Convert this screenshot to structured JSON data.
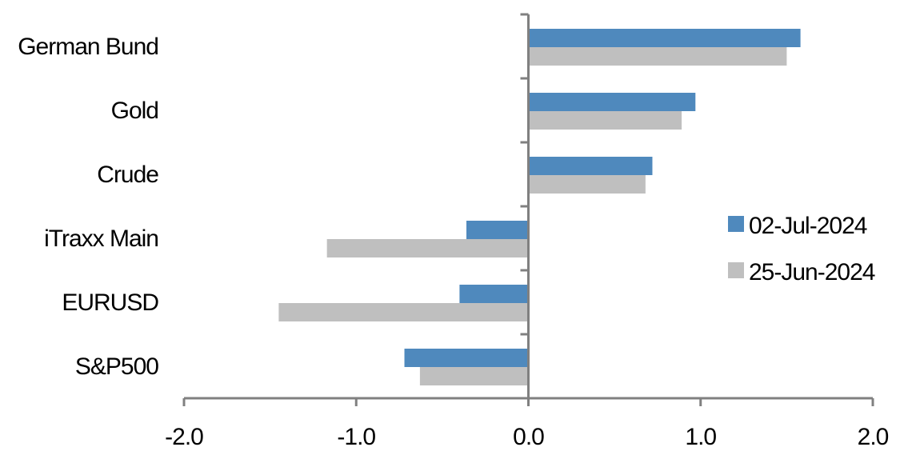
{
  "chart_data": {
    "type": "bar",
    "orientation": "horizontal",
    "categories": [
      "German Bund",
      "Gold",
      "Crude",
      "iTraxx Main",
      "EURUSD",
      "S&P500"
    ],
    "series": [
      {
        "name": "02-Jul-2024",
        "color": "#4F89BD",
        "values": [
          1.58,
          0.97,
          0.72,
          -0.36,
          -0.4,
          -0.72
        ]
      },
      {
        "name": "25-Jun-2024",
        "color": "#BFBFBF",
        "values": [
          1.5,
          0.89,
          0.68,
          -1.17,
          -1.45,
          -0.63
        ]
      }
    ],
    "xlim": [
      -2.0,
      2.0
    ],
    "xticks": [
      "-2.0",
      "-1.0",
      "0.0",
      "1.0",
      "2.0"
    ],
    "xtick_values": [
      -2,
      -1,
      0,
      1,
      2
    ],
    "grid": false,
    "legend": "right",
    "title": "",
    "xlabel": "",
    "ylabel": ""
  }
}
